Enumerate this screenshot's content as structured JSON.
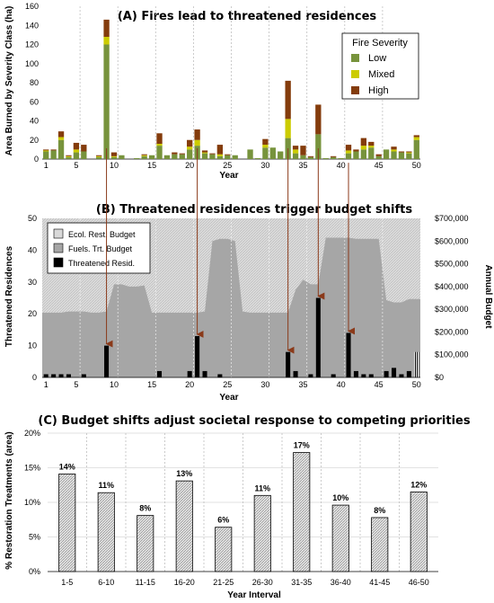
{
  "chart_data": [
    {
      "type": "bar",
      "title": "(A) Fires lead to threatened residences",
      "xlabel": "Year",
      "ylabel": "Area Burned by Severity Class (ha)",
      "ylim": [
        0,
        160
      ],
      "yticks": [
        0,
        20,
        40,
        60,
        80,
        100,
        120,
        140,
        160
      ],
      "xticks": [
        1,
        5,
        10,
        15,
        20,
        25,
        30,
        35,
        40,
        45,
        50
      ],
      "legend_title": "Fire Severity",
      "legend_position": "top-right",
      "x": [
        1,
        2,
        3,
        4,
        5,
        6,
        7,
        8,
        9,
        10,
        11,
        12,
        13,
        14,
        15,
        16,
        17,
        18,
        19,
        20,
        21,
        22,
        23,
        24,
        25,
        26,
        27,
        28,
        29,
        30,
        31,
        32,
        33,
        34,
        35,
        36,
        37,
        38,
        39,
        40,
        41,
        42,
        43,
        44,
        45,
        46,
        47,
        48,
        49,
        50
      ],
      "series": [
        {
          "name": "Low",
          "color": "#77933c",
          "values": [
            8,
            9,
            20,
            2,
            7,
            8,
            0,
            2,
            120,
            2,
            4,
            0,
            1,
            3,
            4,
            14,
            4,
            5,
            5,
            10,
            14,
            6,
            5,
            3,
            4,
            4,
            0,
            10,
            1,
            12,
            12,
            8,
            22,
            6,
            4,
            2,
            26,
            1,
            2,
            1,
            6,
            8,
            10,
            12,
            3,
            10,
            8,
            7,
            6,
            20
          ]
        },
        {
          "name": "Mixed",
          "color": "#cccc00",
          "values": [
            1,
            0,
            3,
            1,
            3,
            0,
            0,
            1,
            8,
            1,
            0,
            0,
            0,
            1,
            0,
            2,
            0,
            0,
            0,
            3,
            6,
            1,
            0,
            2,
            0,
            0,
            0,
            0,
            0,
            3,
            0,
            0,
            20,
            4,
            0,
            0,
            0,
            0,
            0,
            0,
            3,
            0,
            4,
            2,
            0,
            0,
            2,
            0,
            1,
            3
          ]
        },
        {
          "name": "High",
          "color": "#843c0c",
          "values": [
            1,
            1,
            6,
            1,
            7,
            7,
            0,
            1,
            18,
            4,
            0,
            0,
            0,
            1,
            0,
            11,
            0,
            2,
            1,
            7,
            11,
            2,
            1,
            10,
            1,
            0,
            0,
            0,
            0,
            6,
            0,
            0,
            40,
            4,
            10,
            1,
            31,
            0,
            1,
            0,
            6,
            2,
            8,
            4,
            2,
            0,
            3,
            1,
            1,
            2
          ]
        }
      ]
    },
    {
      "type": "area",
      "title": "(B) Threatened residences trigger budget shifts",
      "xlabel": "Year",
      "ylabel": "Threatened Residences",
      "y2label": "Annual Budget",
      "ylim": [
        0,
        50
      ],
      "yticks": [
        0,
        10,
        20,
        30,
        40,
        50
      ],
      "y2ticks": [
        "$0",
        "$100,000",
        "$200,000",
        "$300,000",
        "$400,000",
        "$500,000",
        "$600,000",
        "$700,000"
      ],
      "y2lim": [
        0,
        700000
      ],
      "xticks": [
        1,
        5,
        10,
        15,
        20,
        25,
        30,
        35,
        40,
        45,
        50
      ],
      "legend_position": "top-left",
      "x": [
        1,
        2,
        3,
        4,
        5,
        6,
        7,
        8,
        9,
        10,
        11,
        12,
        13,
        14,
        15,
        16,
        17,
        18,
        19,
        20,
        21,
        22,
        23,
        24,
        25,
        26,
        27,
        28,
        29,
        30,
        31,
        32,
        33,
        34,
        35,
        36,
        37,
        38,
        39,
        40,
        41,
        42,
        43,
        44,
        45,
        46,
        47,
        48,
        49,
        50
      ],
      "series": [
        {
          "name": "Ecol. Rest. Budget",
          "color": "#d9d9d9",
          "values": [
            700000,
            700000,
            700000,
            700000,
            700000,
            700000,
            700000,
            700000,
            700000,
            700000,
            700000,
            700000,
            700000,
            700000,
            700000,
            700000,
            700000,
            700000,
            700000,
            700000,
            700000,
            700000,
            700000,
            700000,
            700000,
            700000,
            700000,
            700000,
            700000,
            700000,
            700000,
            700000,
            700000,
            700000,
            700000,
            700000,
            700000,
            700000,
            700000,
            700000,
            700000,
            700000,
            700000,
            700000,
            700000,
            700000,
            700000,
            700000,
            700000,
            700000
          ]
        },
        {
          "name": "Fuels. Trt. Budget",
          "color": "#a6a6a6",
          "values": [
            285000,
            285000,
            285000,
            290000,
            290000,
            290000,
            285000,
            285000,
            290000,
            410000,
            410000,
            400000,
            400000,
            405000,
            285000,
            285000,
            285000,
            285000,
            285000,
            285000,
            285000,
            290000,
            600000,
            610000,
            610000,
            600000,
            290000,
            285000,
            285000,
            285000,
            285000,
            285000,
            285000,
            385000,
            430000,
            410000,
            410000,
            615000,
            615000,
            615000,
            615000,
            610000,
            610000,
            610000,
            610000,
            340000,
            330000,
            330000,
            345000,
            345000
          ]
        },
        {
          "name": "Threatened Resid.",
          "color": "#000000",
          "values": [
            1,
            1,
            1,
            1,
            0,
            1,
            0,
            0,
            10,
            0,
            0,
            0,
            0,
            0,
            0,
            2,
            0,
            0,
            0,
            2,
            13,
            2,
            0,
            1,
            0,
            0,
            0,
            0,
            0,
            0,
            0,
            0,
            8,
            2,
            0,
            1,
            25,
            0,
            1,
            0,
            14,
            2,
            1,
            1,
            0,
            2,
            3,
            1,
            2,
            8
          ]
        }
      ]
    },
    {
      "type": "bar",
      "title": "(C) Budget shifts adjust societal response to competing priorities",
      "xlabel": "Year Interval",
      "ylabel": "% Restoration Treatments (area)",
      "ylim": [
        0,
        20
      ],
      "yticks": [
        "0%",
        "5%",
        "10%",
        "15%",
        "20%"
      ],
      "categories": [
        "1-5",
        "6-10",
        "11-15",
        "16-20",
        "21-25",
        "26-30",
        "31-35",
        "36-40",
        "41-45",
        "46-50"
      ],
      "values": [
        14.1,
        11.4,
        8.1,
        13.1,
        6.4,
        11.0,
        17.2,
        9.6,
        7.8,
        11.5
      ],
      "value_labels": [
        "14%",
        "11%",
        "8%",
        "13%",
        "6%",
        "11%",
        "17%",
        "10%",
        "8%",
        "12%"
      ]
    }
  ],
  "colors": {
    "arrow": "#8b3a1a",
    "grid": "#bfbfbf"
  }
}
